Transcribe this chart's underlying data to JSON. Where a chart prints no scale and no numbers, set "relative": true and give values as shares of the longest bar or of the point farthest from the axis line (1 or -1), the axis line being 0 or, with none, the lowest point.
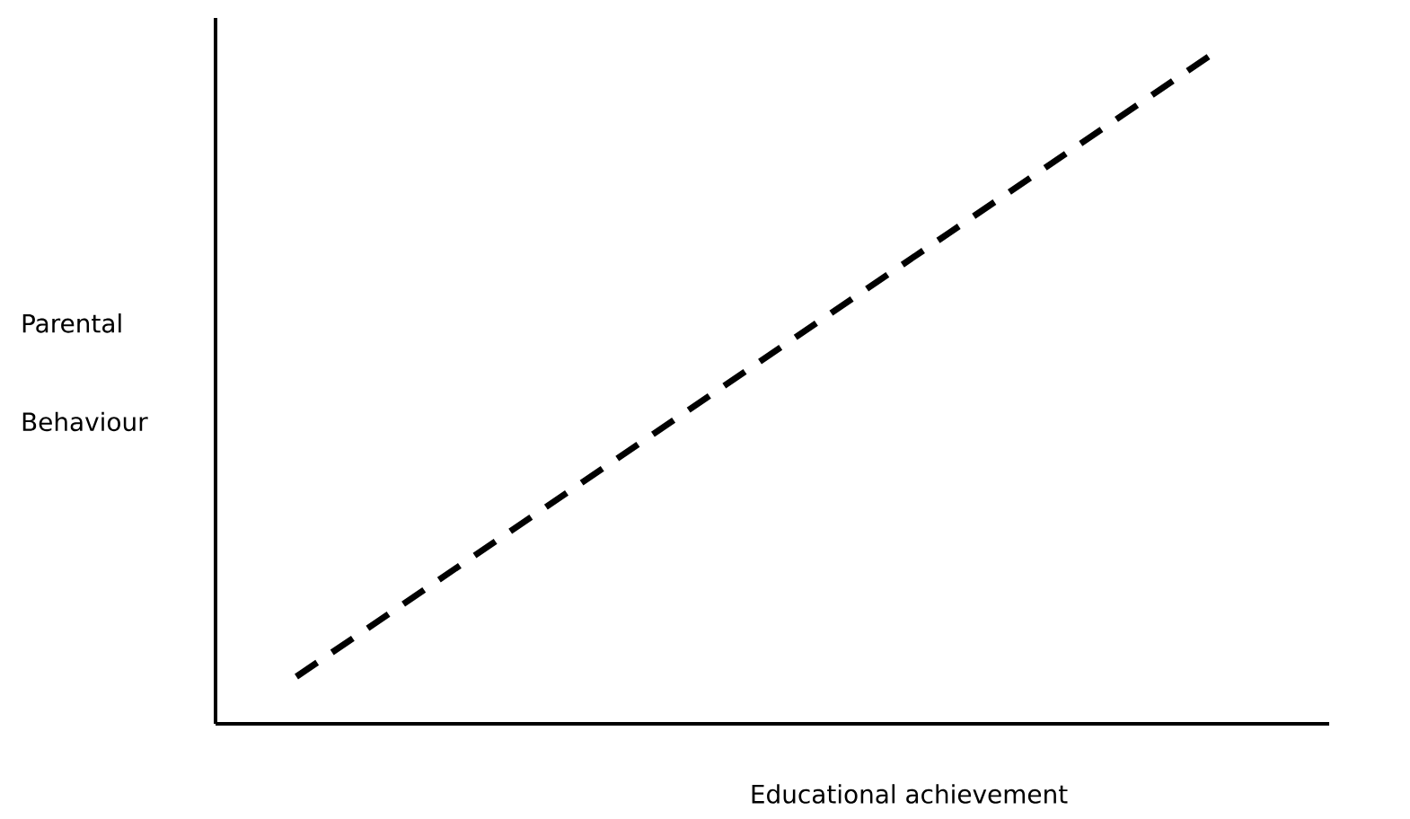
{
  "chart_data": {
    "type": "line",
    "relative": true,
    "xlabel": "Educational achievement",
    "ylabel": "Parental Behaviour",
    "categories": [
      null,
      null
    ],
    "series": [
      {
        "color": "#000000",
        "values": [
          0.07,
          1
        ]
      }
    ],
    "line_style": "dashed",
    "marker": "none"
  }
}
